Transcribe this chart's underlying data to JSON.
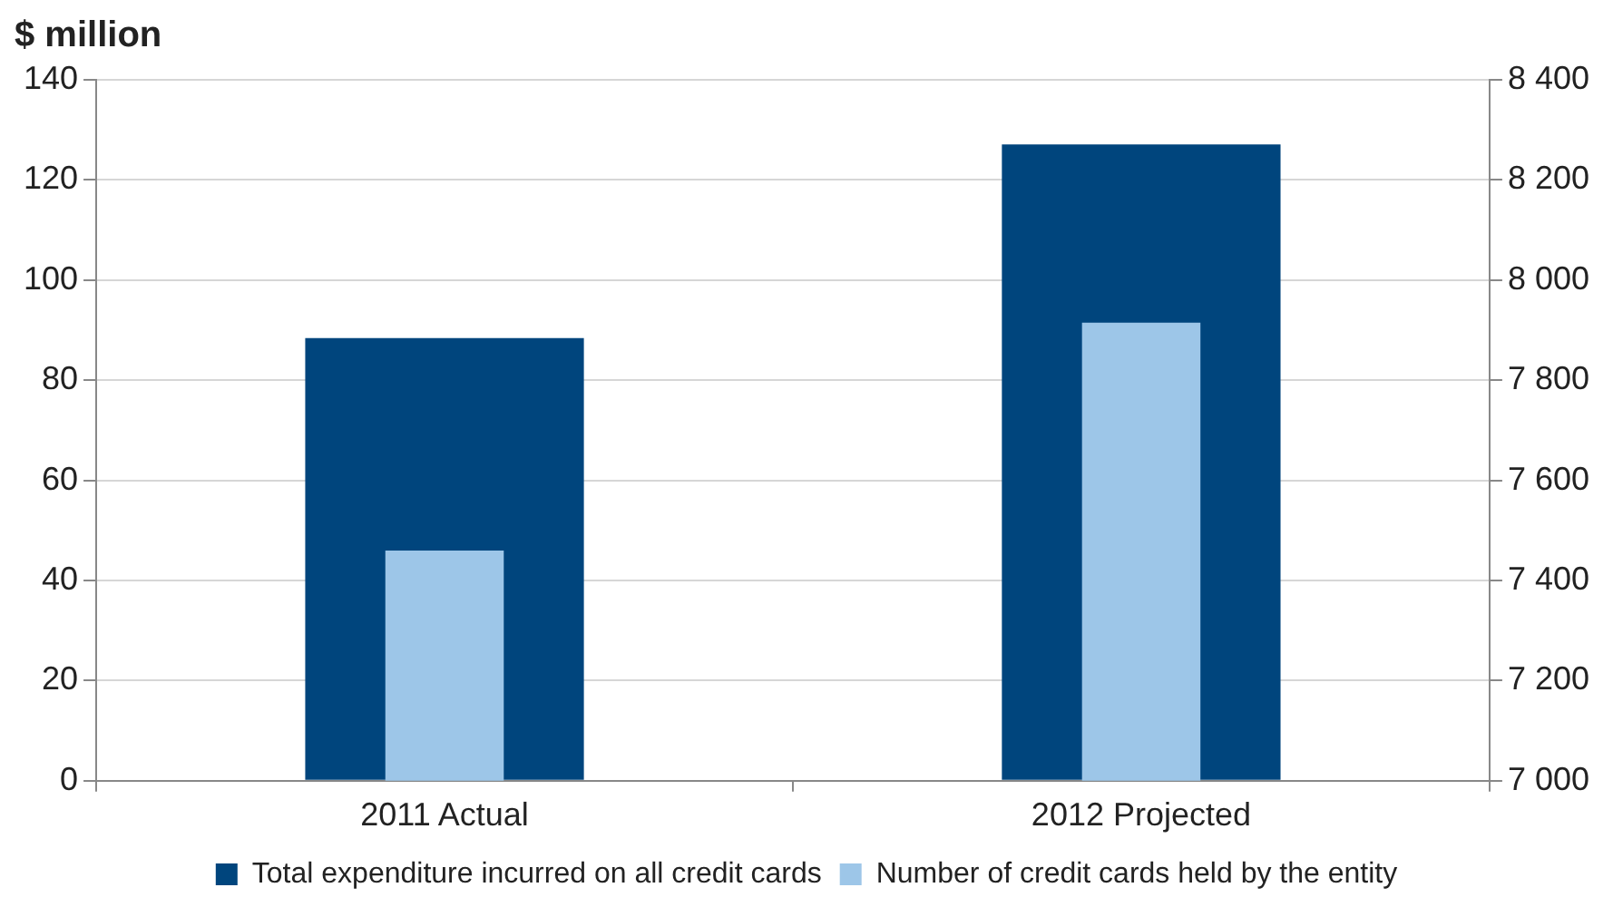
{
  "chart_data": {
    "type": "bar",
    "ylabel": "$ million",
    "categories": [
      "2011 Actual",
      "2012 Projected"
    ],
    "series": [
      {
        "name": "Total expenditure incurred on all credit cards",
        "color": "#00457d",
        "values": [
          88.4,
          127.1
        ]
      },
      {
        "name": "Number of credit cards held by the entity",
        "color": "#9dc6e8",
        "values": [
          7460,
          7915
        ],
        "axis": "y2"
      }
    ],
    "ylim": [
      0,
      140
    ],
    "yticks": [
      0,
      20,
      40,
      60,
      80,
      100,
      120,
      140
    ],
    "y2lim": [
      7000,
      8400
    ],
    "y2ticks": [
      {
        "value": 7000,
        "label": "7 000"
      },
      {
        "value": 7200,
        "label": "7 200"
      },
      {
        "value": 7400,
        "label": "7 400"
      },
      {
        "value": 7600,
        "label": "7 600"
      },
      {
        "value": 7800,
        "label": "7 800"
      },
      {
        "value": 8000,
        "label": "8 000"
      },
      {
        "value": 8200,
        "label": "8 200"
      },
      {
        "value": 8400,
        "label": "8 400"
      }
    ],
    "grid": "y",
    "legend": "bottom"
  }
}
